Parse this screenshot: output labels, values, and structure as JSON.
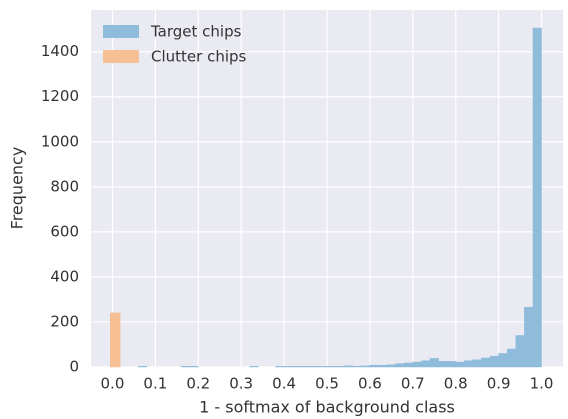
{
  "chart_data": {
    "type": "histogram",
    "xlabel": "1 - softmax of background class",
    "ylabel": "Frequency",
    "xlim": [
      -0.05,
      1.05
    ],
    "ylim": [
      0,
      1585
    ],
    "xticks": [
      {
        "value": 0,
        "label": "0.0"
      },
      0.1,
      0.2,
      0.3,
      0.4,
      0.5,
      0.6,
      0.7,
      0.8,
      0.9,
      {
        "value": 1,
        "label": "1.0"
      }
    ],
    "yticks": [
      0,
      200,
      400,
      600,
      800,
      1000,
      1200,
      1400
    ],
    "grid": true,
    "legend": "upper left",
    "series": [
      {
        "name": "Target chips",
        "color": "#8fbcdb",
        "bins": [
          0,
          0.02,
          0.04,
          0.06,
          0.08,
          0.1,
          0.12,
          0.14,
          0.16,
          0.18,
          0.2,
          0.22,
          0.24,
          0.26,
          0.28,
          0.3,
          0.32,
          0.34,
          0.36,
          0.38,
          0.4,
          0.42,
          0.44,
          0.46,
          0.48,
          0.5,
          0.52,
          0.54,
          0.56,
          0.58,
          0.6,
          0.62,
          0.64,
          0.66,
          0.68,
          0.7,
          0.72,
          0.74,
          0.76,
          0.78,
          0.8,
          0.82,
          0.84,
          0.86,
          0.88,
          0.9,
          0.92,
          0.94,
          0.96,
          0.98,
          1.0
        ],
        "values": [
          0,
          0,
          0,
          3,
          0,
          0,
          0,
          0,
          3,
          3,
          0,
          0,
          0,
          0,
          0,
          0,
          3,
          0,
          0,
          3,
          3,
          3,
          3,
          3,
          3,
          3,
          3,
          5,
          3,
          5,
          8,
          8,
          10,
          15,
          18,
          22,
          28,
          38,
          25,
          25,
          22,
          28,
          32,
          40,
          48,
          60,
          80,
          140,
          265,
          1505
        ]
      },
      {
        "name": "Clutter chips",
        "color": "#f6bf94",
        "bins": [
          -0.005,
          0.018
        ],
        "values": [
          240
        ]
      }
    ]
  }
}
